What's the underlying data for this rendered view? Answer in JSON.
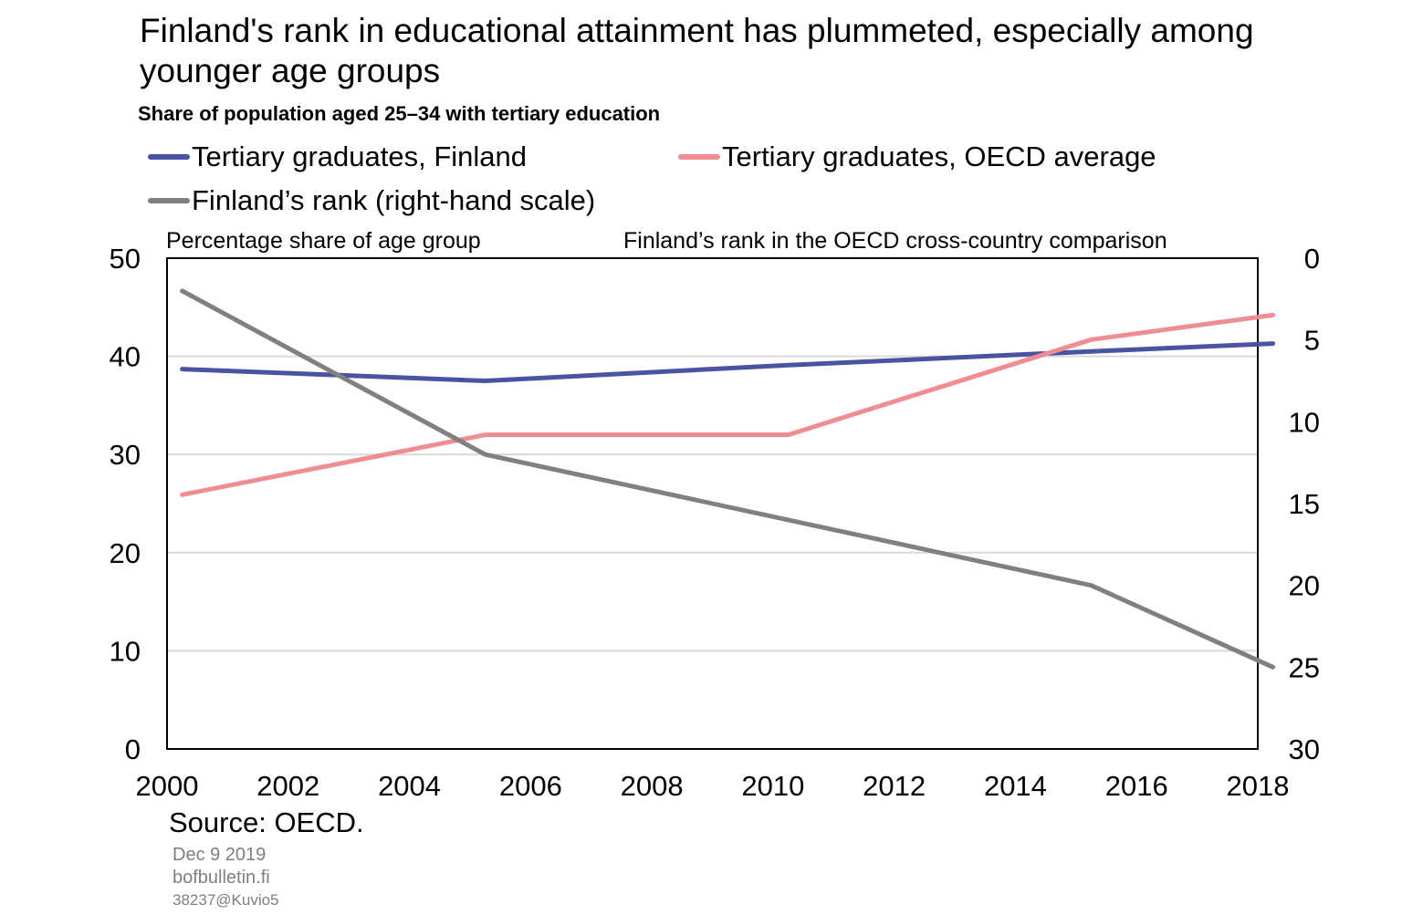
{
  "chart_data": {
    "type": "line",
    "title": "Finland's rank in educational attainment has plummeted, especially among younger age groups",
    "subtitle": "Share of population aged 25–34 with tertiary education",
    "ylabel": "Percentage share of age group",
    "y2label": "Finland’s rank in the OECD cross-country comparison",
    "x_ticks": [
      "2000",
      "2002",
      "2004",
      "2006",
      "2008",
      "2010",
      "2012",
      "2014",
      "2016",
      "2018"
    ],
    "xlim": [
      2000,
      2018
    ],
    "ylim": [
      0,
      50
    ],
    "y_ticks": [
      "0",
      "10",
      "20",
      "30",
      "40",
      "50"
    ],
    "y2lim": [
      0,
      30
    ],
    "y2_inverted": true,
    "y2_ticks": [
      "0",
      "5",
      "10",
      "15",
      "20",
      "25",
      "30"
    ],
    "grid": "horizontal",
    "legend_position": "top",
    "series": [
      {
        "name": "Tertiary graduates, Finland",
        "axis": "left",
        "color": "#4a52a4",
        "x": [
          2000,
          2005,
          2010,
          2015,
          2018
        ],
        "y": [
          38.7,
          37.5,
          39.1,
          40.5,
          41.3
        ]
      },
      {
        "name": "Tertiary graduates, OECD average",
        "axis": "left",
        "color": "#ef8d93",
        "x": [
          2000,
          2005,
          2010,
          2015,
          2018
        ],
        "y": [
          25.9,
          32.0,
          32.0,
          41.7,
          44.2
        ]
      },
      {
        "name": "Finland’s rank (right-hand scale)",
        "axis": "right",
        "color": "#808080",
        "x": [
          2000,
          2005,
          2010,
          2015,
          2018
        ],
        "y": [
          2,
          12,
          16,
          20,
          25
        ]
      }
    ]
  },
  "footer": {
    "source": "Source: OECD.",
    "date": "Dec 9 2019",
    "site": "bofbulletin.fi",
    "id": "38237@Kuvio5"
  }
}
